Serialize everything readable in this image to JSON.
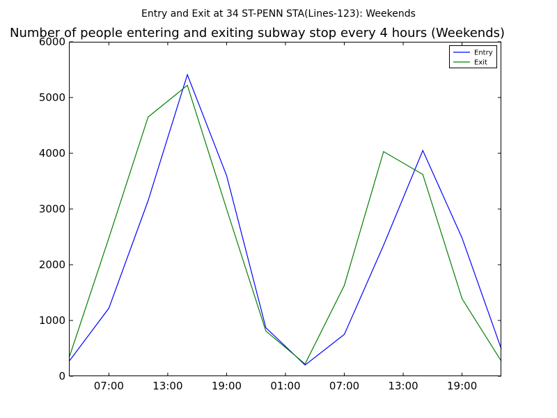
{
  "chart_data": {
    "type": "line",
    "suptitle": "Entry and Exit at 34 ST-PENN STA(Lines-123): Weekends",
    "title": "Number of people entering and exiting subway stop every 4 hours (Weekends)",
    "x": [
      "03:00",
      "07:00",
      "11:00",
      "15:00",
      "19:00",
      "23:00",
      "03:00",
      "07:00",
      "11:00",
      "15:00",
      "19:00",
      "23:00"
    ],
    "x_tick_labels": [
      "07:00",
      "13:00",
      "19:00",
      "01:00",
      "07:00",
      "13:00",
      "19:00"
    ],
    "ylim": [
      0,
      6000
    ],
    "y_ticks": [
      0,
      1000,
      2000,
      3000,
      4000,
      5000,
      6000
    ],
    "legend_position": "top-right",
    "grid": false,
    "series": [
      {
        "name": "Entry",
        "color": "#0000ff",
        "values": [
          280,
          1220,
          3150,
          5410,
          3600,
          870,
          200,
          750,
          2350,
          4050,
          2480,
          490
        ]
      },
      {
        "name": "Exit",
        "color": "#008000",
        "values": [
          360,
          2480,
          4650,
          5220,
          3000,
          810,
          220,
          1630,
          4030,
          3620,
          1390,
          270
        ]
      }
    ]
  }
}
